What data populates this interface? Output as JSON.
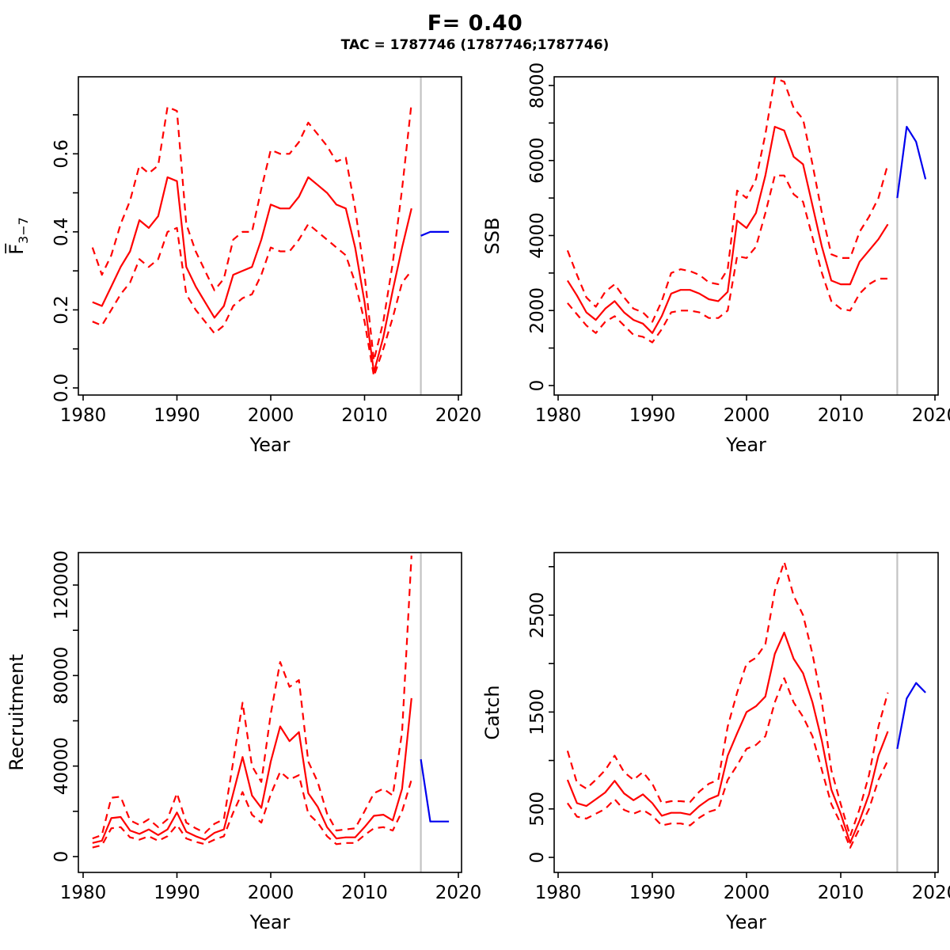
{
  "title": "F= 0.40",
  "subtitle": "TAC = 1787746 (1787746;1787746)",
  "colors": {
    "median": "#ff0000",
    "interval": "#ff0000",
    "forecast": "#0000ee",
    "divider": "#c3c3c3",
    "axis": "#000000",
    "background": "#ffffff"
  },
  "years": {
    "hist": [
      1981,
      1982,
      1983,
      1984,
      1985,
      1986,
      1987,
      1988,
      1989,
      1990,
      1991,
      1992,
      1993,
      1994,
      1995,
      1996,
      1997,
      1998,
      1999,
      2000,
      2001,
      2002,
      2003,
      2004,
      2005,
      2006,
      2007,
      2008,
      2009,
      2010,
      2011,
      2012,
      2013,
      2014,
      2015
    ],
    "forecast": [
      2016,
      2017,
      2018,
      2019
    ]
  },
  "chart_data": [
    {
      "type": "line",
      "panel": "fishing-mortality",
      "title": "",
      "xlabel": "Year",
      "ylabel": "F3-7",
      "ylabel_rich": {
        "base": "F",
        "accent": "overline",
        "subscript": "3−7"
      },
      "xlim": [
        1979.4,
        2020.6
      ],
      "ylim": [
        0,
        0.72
      ],
      "grid": false,
      "legend": null,
      "divider_year": 2016,
      "xticks": [
        1980,
        1990,
        2000,
        2010,
        2020
      ],
      "yticks": [
        {
          "v": 0,
          "label": "0.0"
        },
        {
          "v": 0.1,
          "label": ""
        },
        {
          "v": 0.2,
          "label": "0.2"
        },
        {
          "v": 0.3,
          "label": ""
        },
        {
          "v": 0.4,
          "label": "0.4"
        },
        {
          "v": 0.5,
          "label": ""
        },
        {
          "v": 0.6,
          "label": "0.6"
        },
        {
          "v": 0.7,
          "label": ""
        }
      ],
      "series": [
        {
          "name": "median",
          "color": "median",
          "style": "solid",
          "x": "hist",
          "values": [
            0.22,
            0.21,
            0.26,
            0.31,
            0.35,
            0.43,
            0.41,
            0.44,
            0.54,
            0.53,
            0.31,
            0.26,
            0.22,
            0.18,
            0.21,
            0.29,
            0.3,
            0.31,
            0.38,
            0.47,
            0.46,
            0.46,
            0.49,
            0.54,
            0.52,
            0.5,
            0.47,
            0.46,
            0.36,
            0.22,
            0.04,
            0.13,
            0.25,
            0.36,
            0.46
          ]
        },
        {
          "name": "upper-ci",
          "color": "interval",
          "style": "dashed",
          "x": "hist",
          "values": [
            0.36,
            0.29,
            0.34,
            0.42,
            0.48,
            0.57,
            0.55,
            0.57,
            0.72,
            0.71,
            0.42,
            0.35,
            0.3,
            0.25,
            0.28,
            0.38,
            0.4,
            0.4,
            0.51,
            0.61,
            0.6,
            0.6,
            0.63,
            0.68,
            0.65,
            0.62,
            0.58,
            0.59,
            0.46,
            0.29,
            0.07,
            0.17,
            0.32,
            0.51,
            0.73
          ]
        },
        {
          "name": "lower-ci",
          "color": "interval",
          "style": "dashed",
          "x": "hist",
          "values": [
            0.17,
            0.16,
            0.2,
            0.24,
            0.27,
            0.33,
            0.31,
            0.33,
            0.4,
            0.41,
            0.24,
            0.2,
            0.17,
            0.14,
            0.16,
            0.21,
            0.23,
            0.24,
            0.29,
            0.36,
            0.35,
            0.35,
            0.38,
            0.42,
            0.4,
            0.38,
            0.36,
            0.34,
            0.27,
            0.17,
            0.03,
            0.1,
            0.18,
            0.27,
            0.3
          ]
        },
        {
          "name": "forecast",
          "color": "forecast",
          "style": "solid",
          "x": "forecast",
          "values": [
            0.39,
            0.4,
            0.4,
            0.4
          ]
        }
      ]
    },
    {
      "type": "line",
      "panel": "ssb",
      "title": "",
      "xlabel": "Year",
      "ylabel": "SSB",
      "ylabel_rich": {
        "base": "SSB"
      },
      "xlim": [
        1979.4,
        2020.6
      ],
      "ylim": [
        0,
        8200
      ],
      "grid": false,
      "legend": null,
      "divider_year": 2016,
      "xticks": [
        1980,
        1990,
        2000,
        2010,
        2020
      ],
      "yticks": [
        {
          "v": 0,
          "label": "0"
        },
        {
          "v": 1000,
          "label": ""
        },
        {
          "v": 2000,
          "label": "2000"
        },
        {
          "v": 3000,
          "label": ""
        },
        {
          "v": 4000,
          "label": "4000"
        },
        {
          "v": 5000,
          "label": ""
        },
        {
          "v": 6000,
          "label": "6000"
        },
        {
          "v": 7000,
          "label": ""
        },
        {
          "v": 8000,
          "label": "8000"
        }
      ],
      "series": [
        {
          "name": "median",
          "color": "median",
          "style": "solid",
          "x": "hist",
          "values": [
            2800,
            2400,
            1950,
            1750,
            2050,
            2250,
            1950,
            1750,
            1650,
            1400,
            1850,
            2450,
            2550,
            2550,
            2450,
            2300,
            2250,
            2500,
            4400,
            4200,
            4600,
            5600,
            6900,
            6800,
            6100,
            5900,
            4800,
            3700,
            2800,
            2700,
            2700,
            3300,
            3600,
            3900,
            4300
          ]
        },
        {
          "name": "upper-ci",
          "color": "interval",
          "style": "dashed",
          "x": "hist",
          "values": [
            3600,
            2950,
            2350,
            2100,
            2500,
            2700,
            2350,
            2050,
            1950,
            1700,
            2250,
            3000,
            3100,
            3050,
            2950,
            2750,
            2700,
            3100,
            5200,
            5000,
            5500,
            6700,
            8200,
            8100,
            7400,
            7100,
            5900,
            4600,
            3500,
            3400,
            3400,
            4100,
            4500,
            5000,
            5900
          ]
        },
        {
          "name": "lower-ci",
          "color": "interval",
          "style": "dashed",
          "x": "hist",
          "values": [
            2200,
            1900,
            1600,
            1400,
            1700,
            1850,
            1600,
            1350,
            1300,
            1150,
            1500,
            1950,
            2000,
            2000,
            1950,
            1800,
            1800,
            2000,
            3450,
            3400,
            3700,
            4600,
            5600,
            5600,
            5100,
            4900,
            3950,
            3000,
            2250,
            2050,
            2000,
            2450,
            2700,
            2850,
            2850
          ]
        },
        {
          "name": "forecast",
          "color": "forecast",
          "style": "solid",
          "x": "forecast",
          "values": [
            5000,
            6900,
            6500,
            5500
          ]
        }
      ]
    },
    {
      "type": "line",
      "panel": "recruitment",
      "title": "",
      "xlabel": "Year",
      "ylabel": "Recruitment",
      "ylabel_rich": {
        "base": "Recruitment"
      },
      "xlim": [
        1979.4,
        2020.6
      ],
      "ylim": [
        0,
        134000
      ],
      "grid": false,
      "legend": null,
      "divider_year": 2016,
      "xticks": [
        1980,
        1990,
        2000,
        2010,
        2020
      ],
      "yticks": [
        {
          "v": 0,
          "label": "0"
        },
        {
          "v": 20000,
          "label": ""
        },
        {
          "v": 40000,
          "label": "40000"
        },
        {
          "v": 60000,
          "label": ""
        },
        {
          "v": 80000,
          "label": "80000"
        },
        {
          "v": 100000,
          "label": ""
        },
        {
          "v": 120000,
          "label": "120000"
        }
      ],
      "series": [
        {
          "name": "median",
          "color": "median",
          "style": "solid",
          "x": "hist",
          "values": [
            6000,
            7000,
            17000,
            17500,
            11500,
            10000,
            12000,
            9500,
            12000,
            19500,
            11000,
            9000,
            7500,
            10500,
            12000,
            28000,
            44000,
            27000,
            21500,
            42000,
            57500,
            51000,
            55000,
            28000,
            22000,
            13000,
            8000,
            8500,
            8500,
            13000,
            18000,
            18500,
            16000,
            30000,
            70000
          ]
        },
        {
          "name": "upper-ci",
          "color": "interval",
          "style": "dashed",
          "x": "hist",
          "values": [
            8000,
            9500,
            26000,
            26500,
            16000,
            14000,
            16500,
            13000,
            16500,
            28000,
            15000,
            12500,
            10500,
            14500,
            16500,
            42000,
            68000,
            40000,
            33000,
            63000,
            86000,
            75000,
            78000,
            42000,
            33000,
            19000,
            11500,
            12000,
            12500,
            20000,
            28000,
            30000,
            27000,
            55000,
            133000
          ]
        },
        {
          "name": "lower-ci",
          "color": "interval",
          "style": "dashed",
          "x": "hist",
          "values": [
            4000,
            5000,
            12500,
            13000,
            8500,
            7500,
            9000,
            7000,
            9000,
            14000,
            8000,
            6500,
            5500,
            7500,
            9000,
            19500,
            28500,
            18500,
            15000,
            27500,
            37500,
            34000,
            36000,
            19000,
            15000,
            9000,
            5500,
            6000,
            6000,
            9500,
            12500,
            13000,
            11500,
            20000,
            34000
          ]
        },
        {
          "name": "forecast",
          "color": "forecast",
          "style": "solid",
          "x": "forecast",
          "values": [
            43000,
            15500,
            15500,
            15500
          ]
        }
      ]
    },
    {
      "type": "line",
      "panel": "catch",
      "title": "",
      "xlabel": "Year",
      "ylabel": "Catch",
      "ylabel_rich": {
        "base": "Catch"
      },
      "xlim": [
        1979.4,
        2020.6
      ],
      "ylim": [
        0,
        3100
      ],
      "grid": false,
      "legend": null,
      "divider_year": 2016,
      "xticks": [
        1980,
        1990,
        2000,
        2010,
        2020
      ],
      "yticks": [
        {
          "v": 0,
          "label": "0"
        },
        {
          "v": 500,
          "label": "500"
        },
        {
          "v": 1000,
          "label": ""
        },
        {
          "v": 1500,
          "label": "1500"
        },
        {
          "v": 2000,
          "label": ""
        },
        {
          "v": 2500,
          "label": "2500"
        },
        {
          "v": 3000,
          "label": ""
        }
      ],
      "series": [
        {
          "name": "median",
          "color": "median",
          "style": "solid",
          "x": "hist",
          "values": [
            800,
            560,
            530,
            600,
            670,
            790,
            660,
            590,
            650,
            560,
            430,
            460,
            460,
            440,
            530,
            600,
            640,
            1050,
            1280,
            1500,
            1560,
            1660,
            2100,
            2320,
            2050,
            1900,
            1600,
            1200,
            700,
            450,
            150,
            380,
            650,
            1050,
            1300
          ]
        },
        {
          "name": "upper-ci",
          "color": "interval",
          "style": "dashed",
          "x": "hist",
          "values": [
            1100,
            770,
            710,
            800,
            900,
            1050,
            880,
            800,
            880,
            760,
            560,
            580,
            580,
            570,
            680,
            760,
            800,
            1350,
            1700,
            2000,
            2060,
            2200,
            2750,
            3050,
            2700,
            2500,
            2100,
            1600,
            900,
            550,
            220,
            500,
            850,
            1350,
            1700
          ]
        },
        {
          "name": "lower-ci",
          "color": "interval",
          "style": "dashed",
          "x": "hist",
          "values": [
            560,
            420,
            400,
            450,
            500,
            600,
            490,
            450,
            490,
            430,
            330,
            350,
            350,
            330,
            410,
            470,
            500,
            800,
            950,
            1120,
            1160,
            1250,
            1600,
            1850,
            1600,
            1450,
            1250,
            900,
            550,
            350,
            100,
            300,
            500,
            800,
            1000
          ]
        },
        {
          "name": "forecast",
          "color": "forecast",
          "style": "solid",
          "x": "forecast",
          "values": [
            1120,
            1640,
            1800,
            1700
          ]
        }
      ]
    }
  ]
}
